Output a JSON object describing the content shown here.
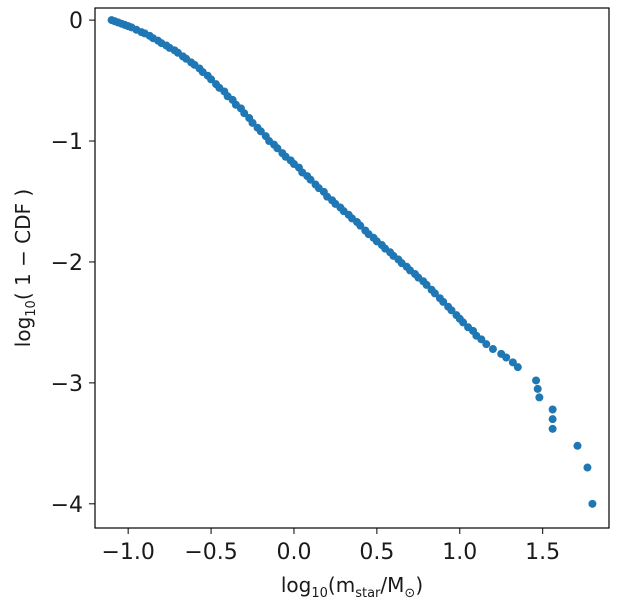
{
  "chart_data": {
    "type": "scatter",
    "title": "",
    "xlabel": {
      "prefix": "log",
      "prefix_sub": "10",
      "open": "(m",
      "var_sub": "star",
      "rest": "/M",
      "rest_sub": "⊙",
      "close": ")"
    },
    "ylabel": {
      "prefix": "log",
      "prefix_sub": "10",
      "body": "( 1 − CDF )"
    },
    "xlim": [
      -1.2,
      1.9
    ],
    "ylim": [
      -4.2,
      0.1
    ],
    "xticks": [
      -1.0,
      -0.5,
      0.0,
      0.5,
      1.0,
      1.5
    ],
    "xtick_labels": [
      "−1.0",
      "−0.5",
      "0.0",
      "0.5",
      "1.0",
      "1.5"
    ],
    "yticks": [
      0,
      -1,
      -2,
      -3,
      -4
    ],
    "ytick_labels": [
      "0",
      "−1",
      "−2",
      "−3",
      "−4"
    ],
    "grid": false,
    "legend": "none",
    "marker_color": "#1f77b4",
    "series": [
      {
        "x": [
          -1.1,
          -1.08,
          -1.06,
          -1.04,
          -1.02,
          -1.0,
          -0.98,
          -0.95,
          -0.92,
          -0.9,
          -0.87,
          -0.85,
          -0.82,
          -0.8,
          -0.77,
          -0.75,
          -0.72,
          -0.7,
          -0.67,
          -0.65,
          -0.62,
          -0.6,
          -0.57,
          -0.55,
          -0.52,
          -0.5,
          -0.47,
          -0.45,
          -0.42,
          -0.4,
          -0.37,
          -0.35,
          -0.32,
          -0.3,
          -0.27,
          -0.25,
          -0.22,
          -0.2,
          -0.17,
          -0.15,
          -0.12,
          -0.1,
          -0.07,
          -0.05,
          -0.02,
          0.0,
          0.03,
          0.05,
          0.08,
          0.1,
          0.13,
          0.15,
          0.18,
          0.2,
          0.23,
          0.25,
          0.28,
          0.3,
          0.33,
          0.35,
          0.38,
          0.4,
          0.43,
          0.45,
          0.48,
          0.5,
          0.53,
          0.55,
          0.58,
          0.6,
          0.63,
          0.65,
          0.68,
          0.7,
          0.73,
          0.75,
          0.78,
          0.8,
          0.83,
          0.85,
          0.88,
          0.9,
          0.93,
          0.95,
          0.98,
          1.0,
          1.02,
          1.05,
          1.08,
          1.1,
          1.13,
          1.16,
          1.2,
          1.25,
          1.28,
          1.32,
          1.35,
          1.46,
          1.47,
          1.48,
          1.56,
          1.56,
          1.56,
          1.71,
          1.77,
          1.8
        ],
        "y": [
          0.0,
          -0.01,
          -0.02,
          -0.03,
          -0.04,
          -0.05,
          -0.06,
          -0.08,
          -0.1,
          -0.11,
          -0.13,
          -0.15,
          -0.17,
          -0.19,
          -0.21,
          -0.23,
          -0.25,
          -0.27,
          -0.3,
          -0.32,
          -0.35,
          -0.37,
          -0.4,
          -0.43,
          -0.46,
          -0.49,
          -0.53,
          -0.56,
          -0.59,
          -0.63,
          -0.66,
          -0.7,
          -0.73,
          -0.77,
          -0.81,
          -0.85,
          -0.89,
          -0.92,
          -0.96,
          -1.0,
          -1.03,
          -1.06,
          -1.1,
          -1.13,
          -1.16,
          -1.19,
          -1.22,
          -1.26,
          -1.29,
          -1.32,
          -1.36,
          -1.39,
          -1.42,
          -1.46,
          -1.49,
          -1.52,
          -1.55,
          -1.58,
          -1.61,
          -1.64,
          -1.67,
          -1.7,
          -1.74,
          -1.77,
          -1.8,
          -1.83,
          -1.86,
          -1.89,
          -1.92,
          -1.95,
          -1.98,
          -2.01,
          -2.04,
          -2.07,
          -2.1,
          -2.13,
          -2.16,
          -2.19,
          -2.23,
          -2.26,
          -2.3,
          -2.33,
          -2.37,
          -2.4,
          -2.44,
          -2.47,
          -2.5,
          -2.54,
          -2.57,
          -2.61,
          -2.64,
          -2.68,
          -2.72,
          -2.76,
          -2.79,
          -2.83,
          -2.87,
          -2.98,
          -3.05,
          -3.12,
          -3.22,
          -3.3,
          -3.38,
          -3.52,
          -3.7,
          -4.0
        ]
      }
    ]
  }
}
